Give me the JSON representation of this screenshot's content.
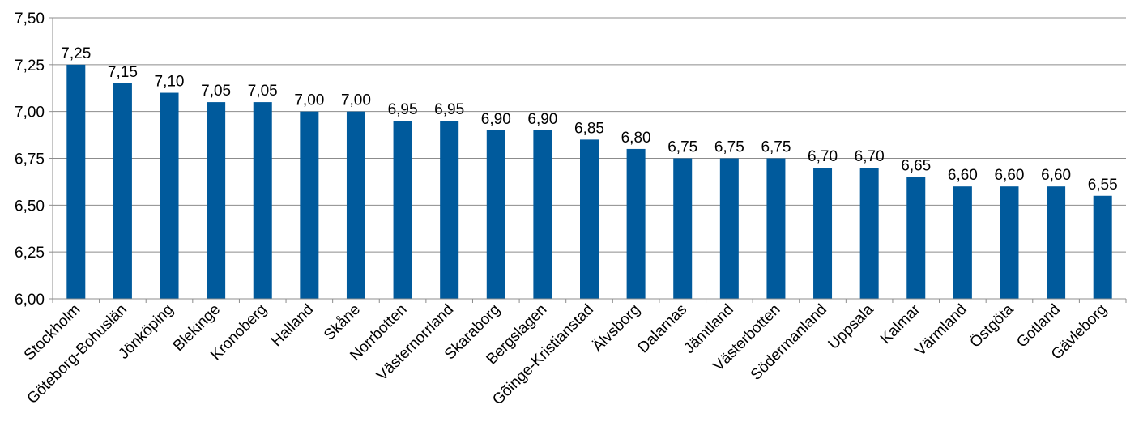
{
  "chart_data": {
    "type": "bar",
    "categories": [
      "Stockholm",
      "Göteborg-Bohuslän",
      "Jönköping",
      "Blekinge",
      "Kronoberg",
      "Halland",
      "Skåne",
      "Norrbotten",
      "Västernorrland",
      "Skaraborg",
      "Bergslagen",
      "Gõinge-Kristianstad",
      "Älvsborg",
      "Dalarnas",
      "Jämtland",
      "Västerbotten",
      "Södermanland",
      "Uppsala",
      "Kalmar",
      "Värmland",
      "Östgöta",
      "Gotland",
      "Gävleborg"
    ],
    "values": [
      7.25,
      7.15,
      7.1,
      7.05,
      7.05,
      7.0,
      7.0,
      6.95,
      6.95,
      6.9,
      6.9,
      6.85,
      6.8,
      6.75,
      6.75,
      6.75,
      6.7,
      6.7,
      6.65,
      6.6,
      6.6,
      6.6,
      6.55
    ],
    "value_labels": [
      "7,25",
      "7,15",
      "7,10",
      "7,05",
      "7,05",
      "7,00",
      "7,00",
      "6,95",
      "6,95",
      "6,90",
      "6,90",
      "6,85",
      "6,80",
      "6,75",
      "6,75",
      "6,75",
      "6,70",
      "6,70",
      "6,65",
      "6,60",
      "6,60",
      "6,60",
      "6,55"
    ],
    "yticks": [
      6.0,
      6.25,
      6.5,
      6.75,
      7.0,
      7.25,
      7.5
    ],
    "ytick_labels": [
      "6,00",
      "6,25",
      "6,50",
      "6,75",
      "7,00",
      "7,25",
      "7,50"
    ],
    "ylim": [
      6.0,
      7.5
    ],
    "grid": true,
    "legend": "none",
    "title": "",
    "xlabel": "",
    "ylabel": "",
    "colors": {
      "bar": "#005A9C",
      "grid": "#8c8c8c",
      "axis": "#8c8c8c"
    }
  }
}
